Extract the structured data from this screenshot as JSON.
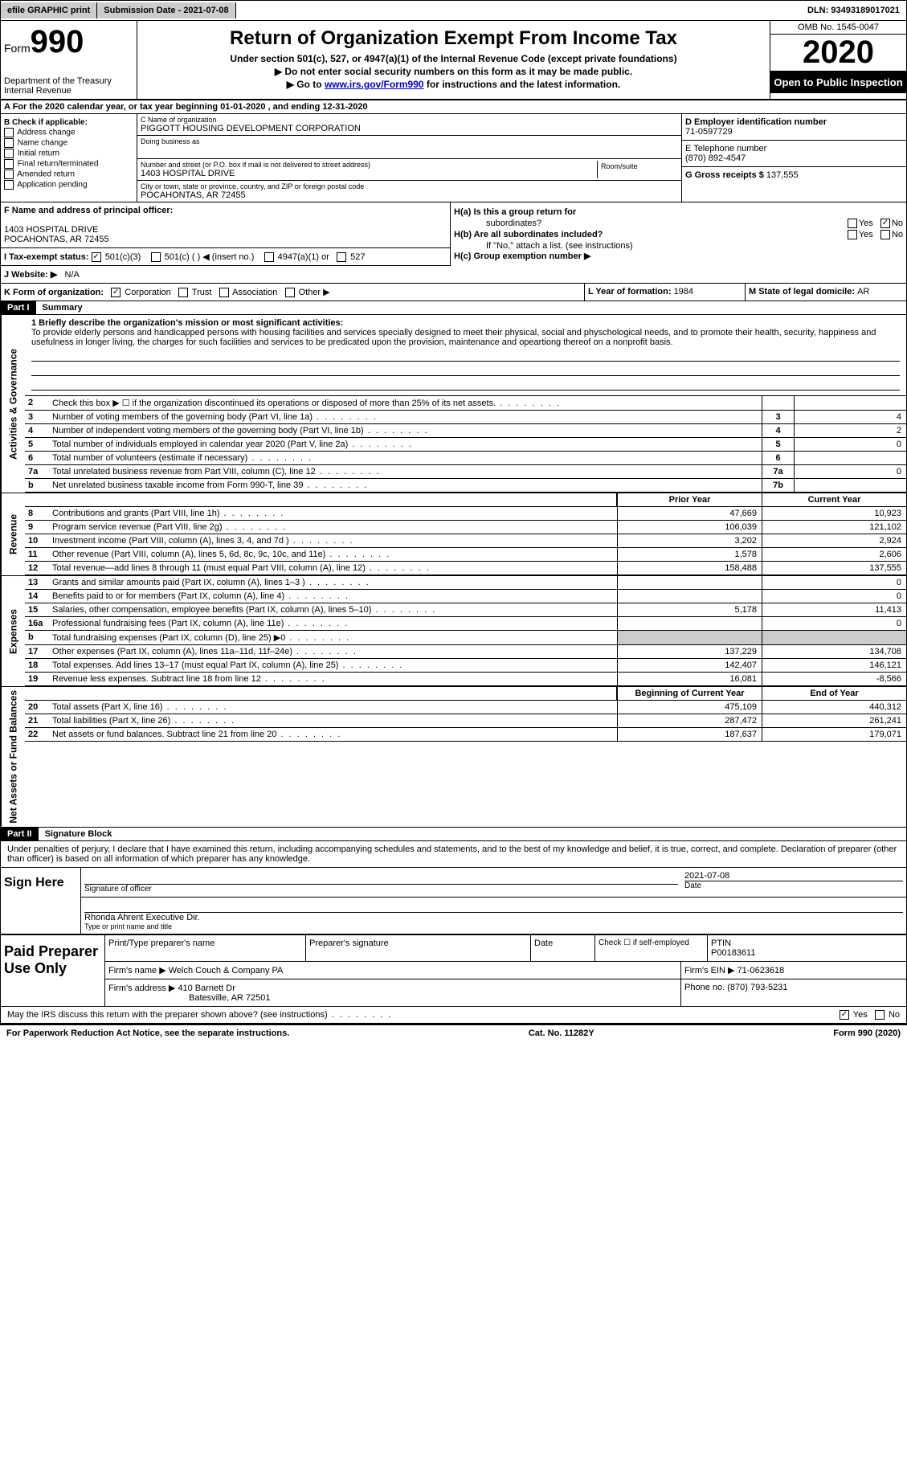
{
  "topbar": {
    "efile_label": "efile GRAPHIC print",
    "submission_label": "Submission Date - 2021-07-08",
    "dln_label": "DLN: 93493189017021"
  },
  "header": {
    "form_word": "Form",
    "form_number": "990",
    "dept1": "Department of the Treasury",
    "dept2": "Internal Revenue",
    "title": "Return of Organization Exempt From Income Tax",
    "subtitle": "Under section 501(c), 527, or 4947(a)(1) of the Internal Revenue Code (except private foundations)",
    "line1": "▶ Do not enter social security numbers on this form as it may be made public.",
    "line2_pre": "▶ Go to ",
    "line2_link": "www.irs.gov/Form990",
    "line2_post": " for instructions and the latest information.",
    "omb": "OMB No. 1545-0047",
    "year": "2020",
    "inspection": "Open to Public Inspection"
  },
  "row_a": "A For the 2020 calendar year, or tax year beginning 01-01-2020    , and ending 12-31-2020",
  "col_b": {
    "title": "B Check if applicable:",
    "items": [
      "Address change",
      "Name change",
      "Initial return",
      "Final return/terminated",
      "Amended return",
      "Application pending"
    ]
  },
  "org": {
    "c_label": "C Name of organization",
    "name": "PIGGOTT HOUSING DEVELOPMENT CORPORATION",
    "dba_label": "Doing business as",
    "addr_label": "Number and street (or P.O. box if mail is not delivered to street address)",
    "room_label": "Room/suite",
    "street": "1403 HOSPITAL DRIVE",
    "city_label": "City or town, state or province, country, and ZIP or foreign postal code",
    "city": "POCAHONTAS, AR  72455"
  },
  "col_de": {
    "d_label": "D Employer identification number",
    "ein": "71-0597729",
    "e_label": "E Telephone number",
    "phone": "(870) 892-4547",
    "g_label": "G Gross receipts $ ",
    "gross": "137,555"
  },
  "officer": {
    "f_label": "F Name and address of principal officer:",
    "street": "1403 HOSPITAL DRIVE",
    "city": "POCAHONTAS, AR  72455"
  },
  "tax_status": {
    "i_label": "I    Tax-exempt status:",
    "opt1": "501(c)(3)",
    "opt2": "501(c) (  ) ◀ (insert no.)",
    "opt3": "4947(a)(1) or",
    "opt4": "527"
  },
  "col_h": {
    "ha_label": "H(a)  Is this a group return for",
    "ha_sub": "subordinates?",
    "hb_label": "H(b)  Are all subordinates included?",
    "hb_note": "If \"No,\" attach a list. (see instructions)",
    "hc_label": "H(c)  Group exemption number ▶",
    "yes": "Yes",
    "no": "No"
  },
  "row_j": {
    "label": "J    Website: ▶",
    "value": "N/A"
  },
  "row_k": {
    "label": "K Form of organization:",
    "corp": "Corporation",
    "trust": "Trust",
    "assoc": "Association",
    "other": "Other ▶",
    "l_label": "L Year of formation: ",
    "l_val": "1984",
    "m_label": "M State of legal domicile: ",
    "m_val": "AR"
  },
  "part1": {
    "header": "Part I",
    "title": "Summary"
  },
  "side_labels": {
    "activities": "Activities & Governance",
    "revenue": "Revenue",
    "expenses": "Expenses",
    "netassets": "Net Assets or Fund Balances"
  },
  "mission": {
    "label": "1  Briefly describe the organization's mission or most significant activities:",
    "text": "To provide elderly persons and handicapped persons with housing facilities and services specially designed to meet their physical, social and physchological needs, and to promote their health, security, happiness and usefulness in longer living, the charges for such facilities and services to be predicated upon the provision, maintenance and opeartiong thereof on a nonprofit basis."
  },
  "governance_rows": [
    {
      "num": "2",
      "text": "Check this box ▶ ☐  if the organization discontinued its operations or disposed of more than 25% of its net assets.",
      "box": "",
      "val": ""
    },
    {
      "num": "3",
      "text": "Number of voting members of the governing body (Part VI, line 1a)",
      "box": "3",
      "val": "4"
    },
    {
      "num": "4",
      "text": "Number of independent voting members of the governing body (Part VI, line 1b)",
      "box": "4",
      "val": "2"
    },
    {
      "num": "5",
      "text": "Total number of individuals employed in calendar year 2020 (Part V, line 2a)",
      "box": "5",
      "val": "0"
    },
    {
      "num": "6",
      "text": "Total number of volunteers (estimate if necessary)",
      "box": "6",
      "val": ""
    },
    {
      "num": "7a",
      "text": "Total unrelated business revenue from Part VIII, column (C), line 12",
      "box": "7a",
      "val": "0"
    },
    {
      "num": "b",
      "text": "Net unrelated business taxable income from Form 990-T, line 39",
      "box": "7b",
      "val": ""
    }
  ],
  "col_headers": {
    "prior": "Prior Year",
    "current": "Current Year",
    "begin": "Beginning of Current Year",
    "end": "End of Year"
  },
  "revenue_rows": [
    {
      "num": "8",
      "text": "Contributions and grants (Part VIII, line 1h)",
      "v1": "47,669",
      "v2": "10,923"
    },
    {
      "num": "9",
      "text": "Program service revenue (Part VIII, line 2g)",
      "v1": "106,039",
      "v2": "121,102"
    },
    {
      "num": "10",
      "text": "Investment income (Part VIII, column (A), lines 3, 4, and 7d )",
      "v1": "3,202",
      "v2": "2,924"
    },
    {
      "num": "11",
      "text": "Other revenue (Part VIII, column (A), lines 5, 6d, 8c, 9c, 10c, and 11e)",
      "v1": "1,578",
      "v2": "2,606"
    },
    {
      "num": "12",
      "text": "Total revenue—add lines 8 through 11 (must equal Part VIII, column (A), line 12)",
      "v1": "158,488",
      "v2": "137,555"
    }
  ],
  "expense_rows": [
    {
      "num": "13",
      "text": "Grants and similar amounts paid (Part IX, column (A), lines 1–3 )",
      "v1": "",
      "v2": "0"
    },
    {
      "num": "14",
      "text": "Benefits paid to or for members (Part IX, column (A), line 4)",
      "v1": "",
      "v2": "0"
    },
    {
      "num": "15",
      "text": "Salaries, other compensation, employee benefits (Part IX, column (A), lines 5–10)",
      "v1": "5,178",
      "v2": "11,413"
    },
    {
      "num": "16a",
      "text": "Professional fundraising fees (Part IX, column (A), line 11e)",
      "v1": "",
      "v2": "0"
    },
    {
      "num": "b",
      "text": "Total fundraising expenses (Part IX, column (D), line 25) ▶0",
      "v1": "SHADE",
      "v2": "SHADE"
    },
    {
      "num": "17",
      "text": "Other expenses (Part IX, column (A), lines 11a–11d, 11f–24e)",
      "v1": "137,229",
      "v2": "134,708"
    },
    {
      "num": "18",
      "text": "Total expenses. Add lines 13–17 (must equal Part IX, column (A), line 25)",
      "v1": "142,407",
      "v2": "146,121"
    },
    {
      "num": "19",
      "text": "Revenue less expenses. Subtract line 18 from line 12",
      "v1": "16,081",
      "v2": "-8,566"
    }
  ],
  "asset_rows": [
    {
      "num": "20",
      "text": "Total assets (Part X, line 16)",
      "v1": "475,109",
      "v2": "440,312"
    },
    {
      "num": "21",
      "text": "Total liabilities (Part X, line 26)",
      "v1": "287,472",
      "v2": "261,241"
    },
    {
      "num": "22",
      "text": "Net assets or fund balances. Subtract line 21 from line 20",
      "v1": "187,637",
      "v2": "179,071"
    }
  ],
  "part2": {
    "header": "Part II",
    "title": "Signature Block"
  },
  "sig": {
    "declaration": "Under penalties of perjury, I declare that I have examined this return, including accompanying schedules and statements, and to the best of my knowledge and belief, it is true, correct, and complete. Declaration of preparer (other than officer) is based on all information of which preparer has any knowledge.",
    "sign_here": "Sign Here",
    "sig_officer": "Signature of officer",
    "date_label": "Date",
    "date": "2021-07-08",
    "name": "Rhonda Ahrent  Executive Dir.",
    "type_label": "Type or print name and title"
  },
  "preparer": {
    "label": "Paid Preparer Use Only",
    "h1": "Print/Type preparer's name",
    "h2": "Preparer's signature",
    "h3": "Date",
    "h4_check": "Check ☐ if self-employed",
    "h5": "PTIN",
    "ptin": "P00183611",
    "firm_label": "Firm's name   ▶ ",
    "firm": "Welch Couch & Company PA",
    "ein_label": "Firm's EIN ▶ ",
    "ein": "71-0623618",
    "addr_label": "Firm's address ▶ ",
    "addr1": "410 Barnett Dr",
    "addr2": "Batesville, AR  72501",
    "phone_label": "Phone no. ",
    "phone": "(870) 793-5231"
  },
  "discuss": {
    "text": "May the IRS discuss this return with the preparer shown above? (see instructions)",
    "yes": "Yes",
    "no": "No"
  },
  "footer": {
    "left": "For Paperwork Reduction Act Notice, see the separate instructions.",
    "mid": "Cat. No. 11282Y",
    "right": "Form 990 (2020)"
  }
}
